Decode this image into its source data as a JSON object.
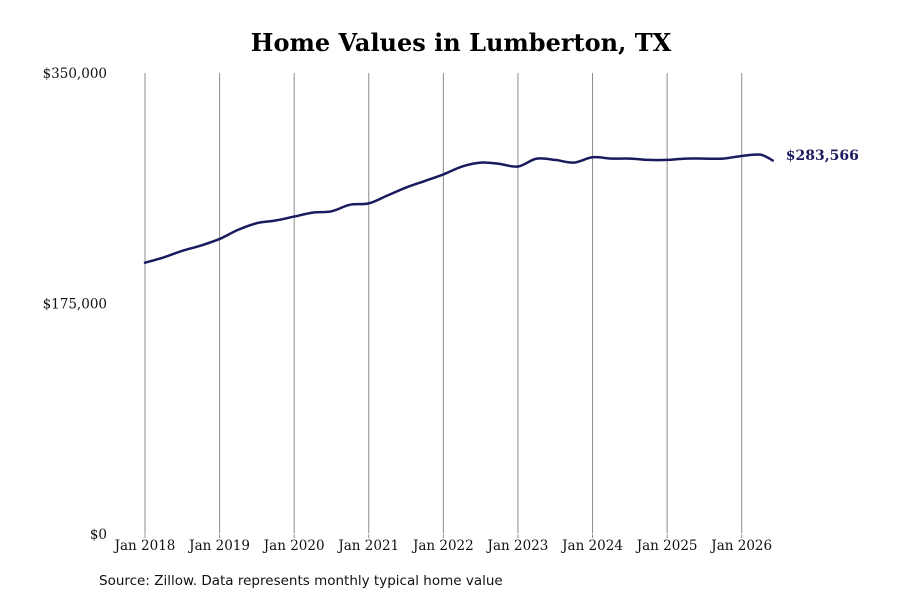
{
  "chart_data": {
    "type": "line",
    "title": "Home Values in Lumberton, TX",
    "xlabel": "",
    "ylabel": "",
    "x_tick_labels": [
      "Jan 2018",
      "Jan 2019",
      "Jan 2020",
      "Jan 2021",
      "Jan 2022",
      "Jan 2023",
      "Jan 2024",
      "Jan 2025",
      "Jan 2026"
    ],
    "y_tick_labels": [
      "$0",
      "$175,000",
      "$350,000"
    ],
    "y_ticks": [
      0,
      175000,
      350000
    ],
    "ylim": [
      0,
      350000
    ],
    "xlim": [
      "2018-01",
      "2026-07"
    ],
    "grid": "vertical",
    "legend": "none",
    "line_color": "#1a1a5e",
    "end_label": "$283,566",
    "series": [
      {
        "x": [
          "2018-01",
          "2018-04",
          "2018-07",
          "2018-10",
          "2019-01",
          "2019-04",
          "2019-07",
          "2019-10",
          "2020-01",
          "2020-04",
          "2020-07",
          "2020-10",
          "2021-01",
          "2021-04",
          "2021-07",
          "2021-10",
          "2022-01",
          "2022-04",
          "2022-07",
          "2022-10",
          "2023-01",
          "2023-04",
          "2023-07",
          "2023-10",
          "2024-01",
          "2024-04",
          "2024-07",
          "2024-10",
          "2025-01",
          "2025-04",
          "2025-07",
          "2025-10",
          "2026-01",
          "2026-04",
          "2026-06"
        ],
        "values": [
          206000,
          210000,
          215000,
          219000,
          224000,
          231000,
          236000,
          238000,
          241000,
          244000,
          245000,
          250000,
          251000,
          257000,
          263000,
          268000,
          273000,
          279000,
          282000,
          281000,
          279000,
          285000,
          284000,
          282000,
          286000,
          285000,
          285000,
          284000,
          284000,
          285000,
          285000,
          285000,
          287000,
          288000,
          283566
        ]
      }
    ]
  },
  "source_note": "Source: Zillow. Data represents monthly typical home value"
}
